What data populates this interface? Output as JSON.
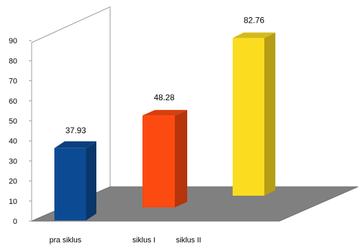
{
  "chart_data": {
    "type": "bar",
    "title": "",
    "xlabel": "",
    "ylabel": "",
    "categories": [
      "pra siklus",
      "siklus I",
      "siklus II"
    ],
    "values": [
      37.93,
      48.28,
      82.76
    ],
    "data_labels": [
      "37.93",
      "48.28",
      "82.76"
    ],
    "y_ticks": [
      0,
      10,
      20,
      30,
      40,
      50,
      60,
      70,
      80,
      90
    ],
    "ylim": [
      0,
      90
    ],
    "grid": false,
    "legend": "none",
    "three_d": true,
    "colors": {
      "bars": [
        "#0c4b94",
        "#fd4a10",
        "#fbdc1f"
      ],
      "floor": "#808080",
      "wall": "#ffffff",
      "wall_edge": "#999999"
    }
  }
}
